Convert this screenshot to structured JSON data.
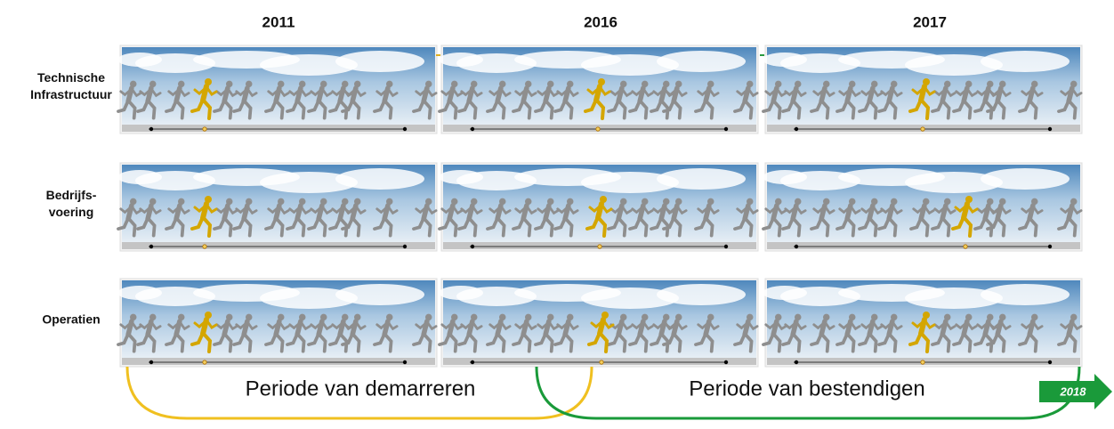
{
  "columns": [
    "2011",
    "2016",
    "2017"
  ],
  "rows": [
    {
      "label_lines": [
        "Technische",
        "Infrastructuur"
      ]
    },
    {
      "label_lines": [
        "Bedrijfs-",
        "voering"
      ]
    },
    {
      "label_lines": [
        "Operatien"
      ]
    }
  ],
  "periods": [
    "Periode van demarreren",
    "Periode van bestendigen"
  ],
  "arrow_label": "2018"
}
